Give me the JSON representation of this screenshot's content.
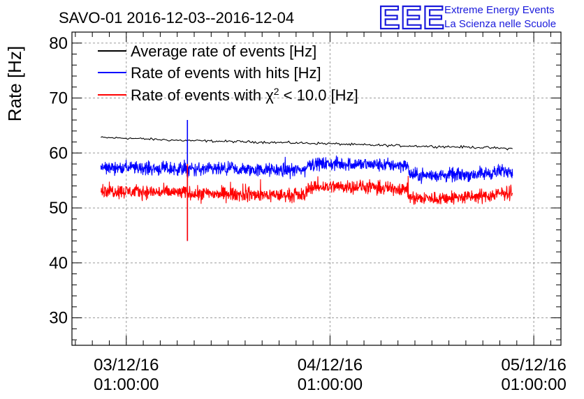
{
  "header": {
    "title": "SAVO-01 2016-12-03--2016-12-04",
    "logo_mark": "EEE",
    "logo_line1": "Extreme Energy Events",
    "logo_line2": "La Scienza nelle Scuole"
  },
  "colors": {
    "average": "#000000",
    "hits": "#0000ff",
    "chi2": "#ff0000",
    "logo": "#1a1adc"
  },
  "chart_data": {
    "type": "line",
    "title": "SAVO-01 2016-12-03--2016-12-04",
    "ylabel": "Rate [Hz]",
    "xlabel": "",
    "ylim": [
      25,
      82
    ],
    "yticks": [
      30,
      40,
      50,
      60,
      70,
      80
    ],
    "x_unit": "hours since 2016-12-03 01:00:00",
    "xlim": [
      -6.4,
      51.2
    ],
    "xticks": [
      {
        "x": 0,
        "date": "03/12/16",
        "time": "01:00:00"
      },
      {
        "x": 24,
        "date": "04/12/16",
        "time": "01:00:00"
      },
      {
        "x": 48,
        "date": "05/12/16",
        "time": "01:00:00"
      }
    ],
    "grid": true,
    "legend_position": "top-left",
    "series": [
      {
        "name": "Average rate of events [Hz]",
        "name_prefix": "Average rate of events [Hz]",
        "name_sup": "",
        "name_suffix": "",
        "color_key": "average",
        "style": "smooth",
        "x": [
          -3.0,
          0,
          3,
          6,
          9,
          12,
          15,
          18,
          21,
          24,
          27,
          30,
          33,
          36,
          39,
          42,
          45,
          45.5
        ],
        "y": [
          62.8,
          62.7,
          62.5,
          62.3,
          62.2,
          62.1,
          62.0,
          61.9,
          61.8,
          61.7,
          61.5,
          61.4,
          61.3,
          61.2,
          61.1,
          61.0,
          60.8,
          60.8
        ]
      },
      {
        "name": "Rate of events with hits [Hz]",
        "name_prefix": "Rate of events with hits [Hz]",
        "name_sup": "",
        "name_suffix": "",
        "color_key": "hits",
        "style": "noisy",
        "x": [
          -3.0,
          0,
          3,
          6,
          9,
          12,
          15,
          18,
          21,
          21.5,
          24,
          27,
          30,
          33,
          33.5,
          36,
          39,
          42,
          45,
          45.5
        ],
        "y": [
          57.4,
          57.3,
          57.2,
          57.1,
          57.0,
          57.0,
          56.9,
          56.9,
          56.9,
          58.0,
          58.0,
          58.0,
          57.8,
          57.8,
          56.0,
          55.9,
          56.0,
          56.2,
          56.8,
          56.9
        ],
        "spike": {
          "x": 7.2,
          "ymin": 44.0,
          "ymax": 66.0
        }
      },
      {
        "name": "Rate of events with χ² < 10.0 [Hz]",
        "name_prefix": "Rate of events with χ",
        "name_sup": "2",
        "name_suffix": " < 10.0 [Hz]",
        "color_key": "chi2",
        "style": "noisy",
        "x": [
          -3.0,
          0,
          3,
          6,
          9,
          12,
          15,
          18,
          21,
          21.5,
          24,
          27,
          30,
          33,
          33.5,
          36,
          39,
          42,
          45,
          45.5
        ],
        "y": [
          53.2,
          53.0,
          52.9,
          52.8,
          52.6,
          52.5,
          52.4,
          52.3,
          52.3,
          53.8,
          53.9,
          53.9,
          53.6,
          53.5,
          51.8,
          51.7,
          51.9,
          52.1,
          52.8,
          52.9
        ]
      }
    ]
  }
}
